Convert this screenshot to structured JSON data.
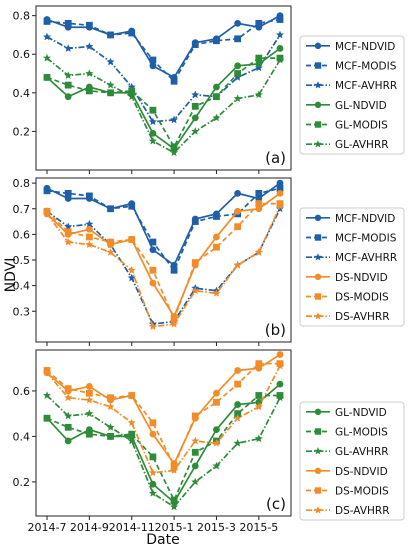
{
  "chart_data": {
    "type": "line",
    "shared_x": {
      "label": "Date",
      "categories": [
        "2014-7",
        "2014-8",
        "2014-9",
        "2014-10",
        "2014-11",
        "2014-12",
        "2015-1",
        "2015-2",
        "2015-3",
        "2015-4",
        "2015-5",
        "2015-6"
      ],
      "tick_labels": [
        "2014-7",
        "2014-9",
        "2014-11",
        "2015-1",
        "2015-3",
        "2015-5"
      ]
    },
    "colors": {
      "MCF": "#1f5fa8",
      "GL": "#2e8b3a",
      "DS": "#f28c28"
    },
    "panels": [
      {
        "letter": "(a)",
        "ylabel": "",
        "ylim": [
          0.0,
          0.85
        ],
        "yticks": [
          "0.2",
          "0.4",
          "0.6",
          "0.8"
        ],
        "legend_position": "right",
        "series": [
          {
            "name": "MCF-NDVID",
            "group": "MCF",
            "style": "solid",
            "marker": "circle",
            "values": [
              0.78,
              0.74,
              0.74,
              0.7,
              0.72,
              0.54,
              0.48,
              0.66,
              0.68,
              0.76,
              0.74,
              0.8
            ]
          },
          {
            "name": "MCF-MODIS",
            "group": "MCF",
            "style": "dashed",
            "marker": "square",
            "values": [
              0.77,
              0.76,
              0.75,
              0.7,
              0.71,
              0.57,
              0.46,
              0.65,
              0.67,
              0.68,
              0.76,
              0.78
            ]
          },
          {
            "name": "MCF-AVHRR",
            "group": "MCF",
            "style": "dashdot",
            "marker": "star",
            "values": [
              0.69,
              0.63,
              0.64,
              0.56,
              0.43,
              0.25,
              0.26,
              0.39,
              0.38,
              0.48,
              0.53,
              0.7
            ]
          },
          {
            "name": "GL-NDVID",
            "group": "GL",
            "style": "solid",
            "marker": "circle",
            "values": [
              0.48,
              0.38,
              0.43,
              0.4,
              0.4,
              0.19,
              0.11,
              0.27,
              0.43,
              0.54,
              0.55,
              0.63
            ]
          },
          {
            "name": "GL-MODIS",
            "group": "GL",
            "style": "dashed",
            "marker": "square",
            "values": [
              0.48,
              0.44,
              0.41,
              0.4,
              0.41,
              0.31,
              0.12,
              0.33,
              0.38,
              0.5,
              0.58,
              0.58
            ]
          },
          {
            "name": "GL-AVHRR",
            "group": "GL",
            "style": "dashdot",
            "marker": "star",
            "values": [
              0.58,
              0.49,
              0.5,
              0.44,
              0.38,
              0.15,
              0.09,
              0.2,
              0.27,
              0.37,
              0.39,
              0.57
            ]
          }
        ]
      },
      {
        "letter": "(b)",
        "ylabel": "NDVI",
        "ylim": [
          0.18,
          0.82
        ],
        "yticks": [
          "0.3",
          "0.4",
          "0.5",
          "0.6",
          "0.7",
          "0.8"
        ],
        "legend_position": "right",
        "series": [
          {
            "name": "MCF-NDVID",
            "group": "MCF",
            "style": "solid",
            "marker": "circle",
            "values": [
              0.78,
              0.74,
              0.74,
              0.7,
              0.72,
              0.54,
              0.48,
              0.66,
              0.68,
              0.76,
              0.74,
              0.8
            ]
          },
          {
            "name": "MCF-MODIS",
            "group": "MCF",
            "style": "dashed",
            "marker": "square",
            "values": [
              0.77,
              0.76,
              0.75,
              0.7,
              0.71,
              0.57,
              0.46,
              0.65,
              0.67,
              0.68,
              0.76,
              0.78
            ]
          },
          {
            "name": "MCF-AVHRR",
            "group": "MCF",
            "style": "dashdot",
            "marker": "star",
            "values": [
              0.69,
              0.63,
              0.64,
              0.56,
              0.43,
              0.25,
              0.26,
              0.39,
              0.38,
              0.48,
              0.53,
              0.7
            ]
          },
          {
            "name": "DS-NDVID",
            "group": "DS",
            "style": "solid",
            "marker": "circle",
            "values": [
              0.68,
              0.6,
              0.62,
              0.56,
              0.58,
              0.41,
              0.28,
              0.48,
              0.59,
              0.69,
              0.7,
              0.76
            ]
          },
          {
            "name": "DS-MODIS",
            "group": "DS",
            "style": "dashed",
            "marker": "square",
            "values": [
              0.69,
              0.61,
              0.59,
              0.57,
              0.58,
              0.46,
              0.27,
              0.49,
              0.55,
              0.63,
              0.72,
              0.72
            ]
          },
          {
            "name": "DS-AVHRR",
            "group": "DS",
            "style": "dashdot",
            "marker": "star",
            "values": [
              0.68,
              0.57,
              0.56,
              0.53,
              0.46,
              0.24,
              0.25,
              0.38,
              0.37,
              0.48,
              0.53,
              0.71
            ]
          }
        ]
      },
      {
        "letter": "(c)",
        "ylabel": "",
        "ylim": [
          0.05,
          0.78
        ],
        "yticks": [
          "0.2",
          "0.4",
          "0.6"
        ],
        "legend_position": "right",
        "series": [
          {
            "name": "GL-NDVID",
            "group": "GL",
            "style": "solid",
            "marker": "circle",
            "values": [
              0.48,
              0.38,
              0.43,
              0.4,
              0.4,
              0.19,
              0.11,
              0.27,
              0.43,
              0.54,
              0.55,
              0.63
            ]
          },
          {
            "name": "GL-MODIS",
            "group": "GL",
            "style": "dashed",
            "marker": "square",
            "values": [
              0.48,
              0.44,
              0.41,
              0.4,
              0.41,
              0.31,
              0.12,
              0.33,
              0.38,
              0.5,
              0.58,
              0.58
            ]
          },
          {
            "name": "GL-AVHRR",
            "group": "GL",
            "style": "dashdot",
            "marker": "star",
            "values": [
              0.58,
              0.49,
              0.5,
              0.44,
              0.38,
              0.15,
              0.09,
              0.2,
              0.27,
              0.37,
              0.39,
              0.57
            ]
          },
          {
            "name": "DS-NDVID",
            "group": "DS",
            "style": "solid",
            "marker": "circle",
            "values": [
              0.68,
              0.6,
              0.62,
              0.56,
              0.58,
              0.41,
              0.28,
              0.48,
              0.59,
              0.69,
              0.7,
              0.76
            ]
          },
          {
            "name": "DS-MODIS",
            "group": "DS",
            "style": "dashed",
            "marker": "square",
            "values": [
              0.69,
              0.61,
              0.59,
              0.57,
              0.58,
              0.46,
              0.27,
              0.49,
              0.55,
              0.63,
              0.72,
              0.72
            ]
          },
          {
            "name": "DS-AVHRR",
            "group": "DS",
            "style": "dashdot",
            "marker": "star",
            "values": [
              0.68,
              0.57,
              0.56,
              0.53,
              0.46,
              0.24,
              0.25,
              0.38,
              0.37,
              0.48,
              0.53,
              0.71
            ]
          }
        ]
      }
    ]
  }
}
